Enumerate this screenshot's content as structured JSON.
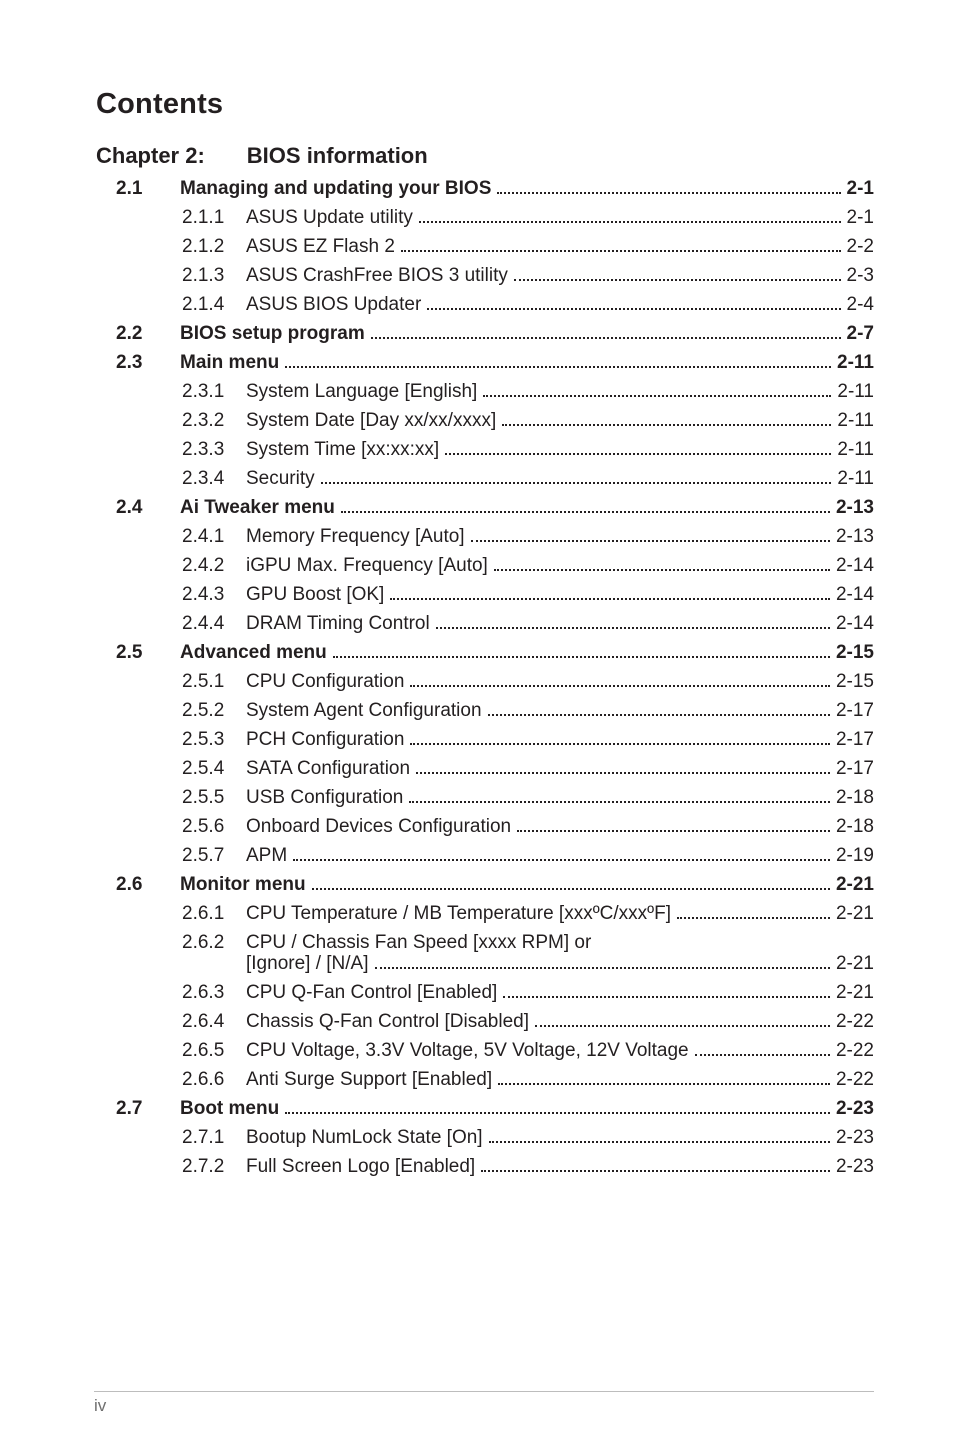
{
  "page": {
    "title": "Contents",
    "chapter_label": "Chapter 2:",
    "chapter_title": "BIOS information",
    "footer_page": "iv"
  },
  "sections": [
    {
      "num": "2.1",
      "title": "Managing and updating your BIOS",
      "page": "2-1",
      "subs": [
        {
          "num": "2.1.1",
          "title": "ASUS Update utility",
          "page": "2-1"
        },
        {
          "num": "2.1.2",
          "title": "ASUS EZ Flash 2",
          "page": "2-2"
        },
        {
          "num": "2.1.3",
          "title": "ASUS CrashFree BIOS 3 utility",
          "page": "2-3"
        },
        {
          "num": "2.1.4",
          "title": "ASUS BIOS Updater",
          "page": "2-4"
        }
      ]
    },
    {
      "num": "2.2",
      "title": "BIOS setup program",
      "page": "2-7",
      "subs": []
    },
    {
      "num": "2.3",
      "title": "Main menu",
      "page": "2-11",
      "subs": [
        {
          "num": "2.3.1",
          "title": "System Language [English]",
          "page": "2-11"
        },
        {
          "num": "2.3.2",
          "title": "System Date [Day xx/xx/xxxx]",
          "page": "2-11"
        },
        {
          "num": "2.3.3",
          "title": "System Time [xx:xx:xx]",
          "page": "2-11"
        },
        {
          "num": "2.3.4",
          "title": "Security",
          "page": "2-11"
        }
      ]
    },
    {
      "num": "2.4",
      "title": "Ai Tweaker menu",
      "page": "2-13",
      "subs": [
        {
          "num": "2.4.1",
          "title": "Memory Frequency [Auto]",
          "page": "2-13"
        },
        {
          "num": "2.4.2",
          "title": "iGPU Max. Frequency [Auto]",
          "page": "2-14"
        },
        {
          "num": "2.4.3",
          "title": "GPU Boost [OK]",
          "page": "2-14"
        },
        {
          "num": "2.4.4",
          "title": "DRAM Timing Control",
          "page": "2-14"
        }
      ]
    },
    {
      "num": "2.5",
      "title": "Advanced menu",
      "page": "2-15",
      "subs": [
        {
          "num": "2.5.1",
          "title": "CPU Configuration",
          "page": "2-15"
        },
        {
          "num": "2.5.2",
          "title": "System Agent Configuration",
          "page": "2-17"
        },
        {
          "num": "2.5.3",
          "title": "PCH Configuration",
          "page": "2-17"
        },
        {
          "num": "2.5.4",
          "title": "SATA Configuration",
          "page": "2-17"
        },
        {
          "num": "2.5.5",
          "title": "USB Configuration",
          "page": "2-18"
        },
        {
          "num": "2.5.6",
          "title": "Onboard Devices Configuration",
          "page": "2-18"
        },
        {
          "num": "2.5.7",
          "title": "APM",
          "page": "2-19"
        }
      ]
    },
    {
      "num": "2.6",
      "title": "Monitor menu",
      "page": "2-21",
      "subs": [
        {
          "num": "2.6.1",
          "title": "CPU Temperature / MB Temperature [xxxºC/xxxºF]",
          "page": "2-21"
        },
        {
          "num": "2.6.2",
          "title": "CPU / Chassis Fan Speed [xxxx RPM] or",
          "cont": "[Ignore] / [N/A]",
          "page": "2-21"
        },
        {
          "num": "2.6.3",
          "title": "CPU Q-Fan Control [Enabled]",
          "page": "2-21"
        },
        {
          "num": "2.6.4",
          "title": "Chassis Q-Fan Control [Disabled]",
          "page": "2-22"
        },
        {
          "num": "2.6.5",
          "title": "CPU Voltage, 3.3V Voltage, 5V Voltage, 12V Voltage",
          "page": "2-22"
        },
        {
          "num": "2.6.6",
          "title": "Anti Surge Support [Enabled]",
          "page": "2-22"
        }
      ]
    },
    {
      "num": "2.7",
      "title": "Boot menu",
      "page": "2-23",
      "subs": [
        {
          "num": "2.7.1",
          "title": "Bootup NumLock State [On]",
          "page": "2-23"
        },
        {
          "num": "2.7.2",
          "title": "Full Screen Logo [Enabled]",
          "page": "2-23"
        }
      ]
    }
  ]
}
